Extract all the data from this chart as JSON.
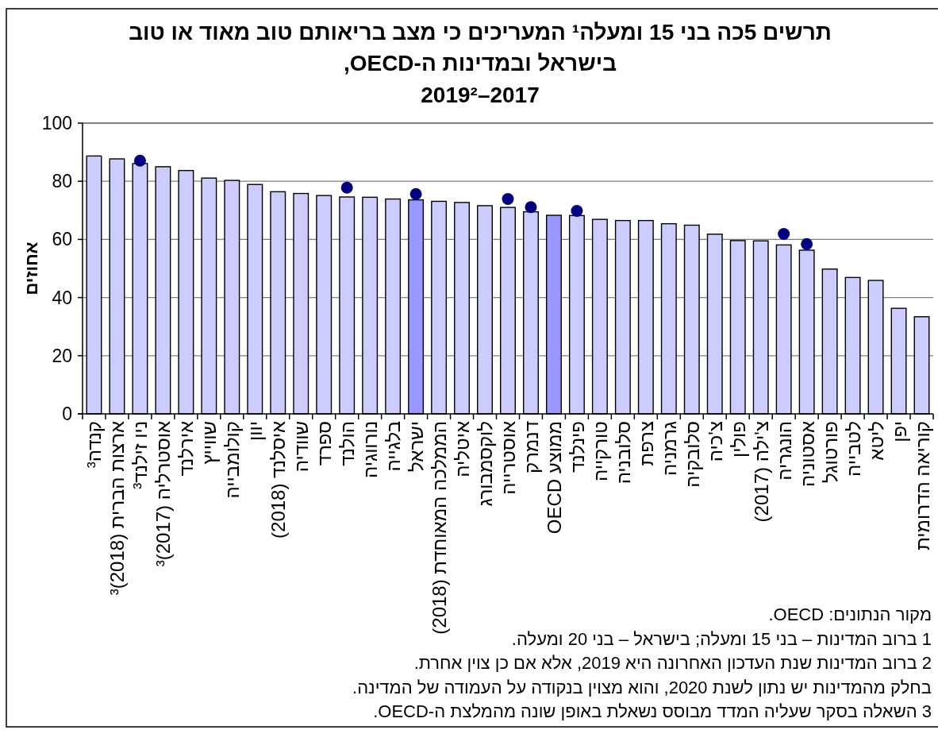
{
  "chart_data": {
    "type": "bar",
    "title": "תרשים 5כה בני 15 ומעלה¹ המעריכים כי מצב בריאותם טוב מאוד או טוב בישראל ובמדינות ה-OECD,",
    "subtitle": "2017–2019²",
    "ylabel": "אחוזים",
    "categories": [
      "קנדה³",
      "ארצות הברית (2018)³",
      "ניו זילנד³",
      "אוסטרליה (2017)³",
      "אירלנד",
      "שווייץ",
      "קולומבייה",
      "יוון",
      "איסלנד (2018)",
      "שוודיה",
      "ספרד",
      "הולנד",
      "נורווגיה",
      "בלגייה",
      "ישראל",
      "הממלכה המאוחדת (2018)",
      "איטליה",
      "לוקסמבורג",
      "אוסטרייה",
      "דנמרק",
      "ממוצע OECD",
      "פינלנד",
      "טורקייה",
      "סלובניה",
      "צרפת",
      "גרמניה",
      "סלובקיה",
      "צ'כיה",
      "פולין",
      "צ'ילה (2017)",
      "הונגריה",
      "אסטוניה",
      "פורטוגל",
      "לטבייה",
      "ליטא",
      "יפן",
      "קוריאה הדרומית"
    ],
    "series": [
      {
        "colors": [
          "#ccccff",
          "#ccccff",
          "#ccccff",
          "#ccccff",
          "#ccccff",
          "#ccccff",
          "#ccccff",
          "#ccccff",
          "#ccccff",
          "#ccccff",
          "#ccccff",
          "#ccccff",
          "#ccccff",
          "#ccccff",
          "#9999ff",
          "#ccccff",
          "#ccccff",
          "#ccccff",
          "#ccccff",
          "#ccccff",
          "#9999ff",
          "#ccccff",
          "#ccccff",
          "#ccccff",
          "#ccccff",
          "#ccccff",
          "#ccccff",
          "#ccccff",
          "#ccccff",
          "#ccccff",
          "#ccccff",
          "#ccccff",
          "#ccccff",
          "#ccccff",
          "#ccccff",
          "#ccccff",
          "#ccccff"
        ],
        "values": [
          88.7,
          87.7,
          86.1,
          85.0,
          83.7,
          81.1,
          80.3,
          78.9,
          76.4,
          75.8,
          75.1,
          74.6,
          74.5,
          73.9,
          73.6,
          73.1,
          72.7,
          71.6,
          71.0,
          69.5,
          68.3,
          68.2,
          66.9,
          66.5,
          66.5,
          65.4,
          64.9,
          61.8,
          59.6,
          59.5,
          58.1,
          56.3,
          49.8,
          46.9,
          45.9,
          36.3,
          33.4
        ]
      },
      {
        "type": "scatter",
        "color": "#000080",
        "marker": "circle",
        "values": [
          null,
          null,
          87.1,
          null,
          null,
          null,
          null,
          null,
          null,
          null,
          null,
          77.8,
          null,
          null,
          75.6,
          null,
          null,
          null,
          73.9,
          71.1,
          null,
          69.8,
          null,
          null,
          null,
          null,
          null,
          null,
          null,
          null,
          61.9,
          58.4,
          null,
          null,
          null,
          null,
          null
        ]
      }
    ],
    "ylim": [
      0,
      100
    ],
    "yticks": [
      0,
      20,
      40,
      60,
      80,
      100
    ],
    "grid": "y",
    "annotations": [
      "מקור הנתונים: OECD.",
      "1 ברוב המדינות – בני 15 ומעלה; בישראל – בני 20 ומעלה.",
      "2 ברוב המדינות שנת העדכון האחרונה היא 2019, אלא אם כן צוין אחרת.",
      "בחלק מהמדינות יש נתון לשנת 2020, והוא מצוין בנקודה על העמודה של המדינה.",
      "3 השאלה בסקר שעליה המדד מבוסס נשאלת באופן שונה מהמלצת ה-OECD."
    ]
  }
}
